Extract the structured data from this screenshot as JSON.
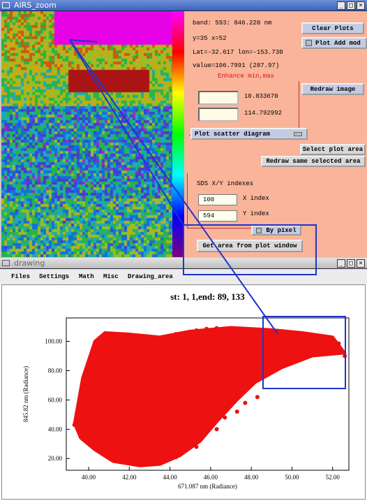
{
  "zoom_window": {
    "title": "AIRS_zoom",
    "band": "band:  593: 846.220 nm",
    "xy": "y=35 x=52",
    "latlon": "Lat=-32.617 lon=-153.730",
    "value": "value=106.7991 (287.97)",
    "enhance_label": "Enhance min,max",
    "clear_plots_label": "Clear Plots",
    "plot_add_mode_label": "Plot Add mod",
    "redraw_image_label": "Redraw image",
    "min_value": "10.833670",
    "max_value": "114.792992",
    "plot_type_select": "Plot scatter diagram",
    "select_plot_area_label": "Select plot area",
    "redraw_same_area_label": "Redraw same selected area",
    "index_heading": "SDS X/Y indexes",
    "x_index_value": "100",
    "x_index_label": "X index",
    "y_index_value": "594",
    "y_index_label": "Y index",
    "by_pixel_label": "By pixel",
    "get_area_label": "Get area from plot window"
  },
  "drawing_window": {
    "title": "drawing",
    "menu": [
      "Files",
      "Settings",
      "Math",
      "Misc",
      "Drawing_area"
    ]
  },
  "colors": {
    "scatter": "#ee1111",
    "selection": "#1f33cc",
    "panel": "#f9b49a"
  },
  "icons": [
    "window-menu-icon",
    "minimize-icon",
    "maximize-icon",
    "close-icon"
  ],
  "chart_data": {
    "type": "scatter",
    "title": "st:  1,  1,end: 89, 133",
    "xlabel": "671.087 nm (Radiance)",
    "ylabel": "845.82 nm (Radiance)",
    "xlim": [
      38.9,
      52.8
    ],
    "ylim": [
      12.0,
      116.0
    ],
    "x_ticks": [
      "40.00",
      "42.00",
      "44.00",
      "46.00",
      "48.00",
      "50.00",
      "52.00"
    ],
    "y_ticks": [
      "20.00",
      "40.00",
      "60.00",
      "80.00",
      "100.00"
    ],
    "series": [
      {
        "x": [
          39.3,
          39.8,
          40.3,
          40.7,
          41.2,
          41.8,
          42.3,
          42.8,
          43.3,
          43.8,
          44.3,
          44.8,
          45.3,
          45.8,
          46.3,
          46.8,
          47.3,
          47.8,
          48.3,
          48.8,
          49.3,
          49.8,
          50.3,
          50.8,
          51.3,
          51.8,
          52.3,
          52.6,
          40.2,
          41.0,
          41.9,
          42.7,
          43.6,
          44.5,
          45.4,
          46.2,
          47.1,
          48.0,
          48.9,
          49.7,
          50.6,
          51.4,
          40.4,
          41.5,
          42.5,
          43.5,
          44.5,
          45.5,
          46.5,
          47.5,
          48.5,
          49.5,
          50.5,
          51.5,
          40.6,
          41.6,
          42.6,
          43.6,
          44.6,
          45.6,
          46.6,
          47.6,
          48.6,
          49.6,
          40.5,
          41.4,
          42.4,
          43.4,
          44.4,
          45.4,
          46.4,
          47.4,
          48.4,
          49.4,
          40.9,
          41.9,
          42.9,
          43.9,
          44.9,
          45.9,
          46.9,
          47.9,
          48.9,
          41.3,
          42.3,
          43.3,
          44.3,
          45.3,
          46.3,
          47.3,
          48.3,
          41.7,
          42.7,
          43.7,
          44.7,
          45.7,
          46.7,
          47.7
        ],
        "y": [
          43.0,
          60.0,
          75.0,
          96.0,
          103.0,
          104.5,
          101.0,
          99.0,
          100.5,
          103.0,
          105.0,
          106.0,
          107.5,
          108.5,
          109.0,
          108.0,
          107.5,
          107.0,
          106.5,
          106.0,
          105.0,
          104.5,
          104.0,
          103.0,
          102.0,
          100.5,
          98.5,
          90.0,
          38.0,
          36.0,
          34.0,
          33.0,
          37.0,
          45.0,
          56.0,
          65.0,
          72.0,
          78.0,
          85.0,
          90.0,
          95.0,
          99.0,
          52.0,
          48.0,
          44.0,
          42.0,
          50.0,
          60.0,
          68.0,
          75.0,
          82.0,
          88.0,
          92.0,
          97.0,
          66.0,
          62.0,
          58.0,
          55.0,
          62.0,
          70.0,
          77.0,
          84.0,
          90.0,
          96.0,
          80.0,
          78.0,
          74.0,
          70.0,
          74.0,
          80.0,
          86.0,
          92.0,
          97.0,
          101.0,
          90.0,
          88.0,
          86.0,
          84.0,
          88.0,
          93.0,
          98.0,
          102.0,
          104.0,
          22.0,
          20.0,
          19.0,
          21.0,
          28.0,
          40.0,
          52.0,
          62.0,
          28.0,
          26.0,
          25.0,
          30.0,
          38.0,
          48.0,
          58.0
        ]
      }
    ]
  }
}
